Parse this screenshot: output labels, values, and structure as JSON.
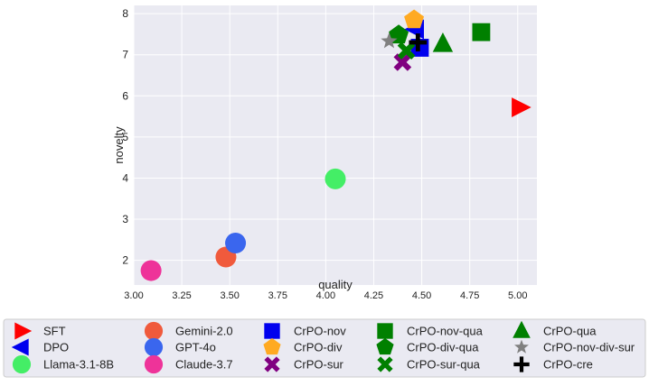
{
  "chart_data": {
    "type": "scatter",
    "title": "",
    "xlabel": "quality",
    "ylabel": "novelty",
    "xlim": [
      3.0,
      5.1
    ],
    "ylim": [
      1.4,
      8.2
    ],
    "x_ticks": [
      3.0,
      3.25,
      3.5,
      3.75,
      4.0,
      4.25,
      4.5,
      4.75,
      5.0
    ],
    "x_tick_labels": [
      "3.00",
      "3.25",
      "3.50",
      "3.75",
      "4.00",
      "4.25",
      "4.50",
      "4.75",
      "5.00"
    ],
    "y_ticks": [
      2,
      3,
      4,
      5,
      6,
      7,
      8
    ],
    "y_tick_labels": [
      "2",
      "3",
      "4",
      "5",
      "6",
      "7",
      "8"
    ],
    "grid": true,
    "legend_position": "bottom",
    "series": [
      {
        "name": "SFT",
        "x": 5.01,
        "y": 5.72,
        "marker": "triangle-right",
        "color": "#ff0000"
      },
      {
        "name": "DPO",
        "x": 4.47,
        "y": 7.62,
        "marker": "triangle-left",
        "color": "#0000ee"
      },
      {
        "name": "Llama-3.1-8B",
        "x": 4.05,
        "y": 3.98,
        "marker": "circle",
        "color": "#44ee66"
      },
      {
        "name": "Gemini-2.0",
        "x": 3.48,
        "y": 2.08,
        "marker": "circle",
        "color": "#f05a3c"
      },
      {
        "name": "GPT-4o",
        "x": 3.53,
        "y": 2.42,
        "marker": "circle",
        "color": "#3a66ee"
      },
      {
        "name": "Claude-3.7",
        "x": 3.09,
        "y": 1.75,
        "marker": "circle",
        "color": "#ee3399"
      },
      {
        "name": "CrPO-nov",
        "x": 4.49,
        "y": 7.17,
        "marker": "square",
        "color": "#0000ee"
      },
      {
        "name": "CrPO-div",
        "x": 4.46,
        "y": 7.85,
        "marker": "pentagon",
        "color": "#ffaa22"
      },
      {
        "name": "CrPO-sur",
        "x": 4.4,
        "y": 6.82,
        "marker": "x",
        "color": "#800080"
      },
      {
        "name": "CrPO-nov-qua",
        "x": 4.81,
        "y": 7.55,
        "marker": "square",
        "color": "#008000"
      },
      {
        "name": "CrPO-div-qua",
        "x": 4.38,
        "y": 7.48,
        "marker": "pentagon",
        "color": "#008000"
      },
      {
        "name": "CrPO-sur-qua",
        "x": 4.42,
        "y": 7.1,
        "marker": "x",
        "color": "#008000"
      },
      {
        "name": "CrPO-qua",
        "x": 4.61,
        "y": 7.26,
        "marker": "triangle-up",
        "color": "#008000"
      },
      {
        "name": "CrPO-nov-div-sur",
        "x": 4.33,
        "y": 7.33,
        "marker": "star",
        "color": "#808080"
      },
      {
        "name": "CrPO-cre",
        "x": 4.48,
        "y": 7.3,
        "marker": "plus",
        "color": "#000000"
      }
    ],
    "legend_order": [
      "SFT",
      "Gemini-2.0",
      "CrPO-nov",
      "CrPO-nov-qua",
      "CrPO-qua",
      "DPO",
      "GPT-4o",
      "CrPO-div",
      "CrPO-div-qua",
      "CrPO-nov-div-sur",
      "Llama-3.1-8B",
      "Claude-3.7",
      "CrPO-sur",
      "CrPO-sur-qua",
      "CrPO-cre"
    ]
  }
}
